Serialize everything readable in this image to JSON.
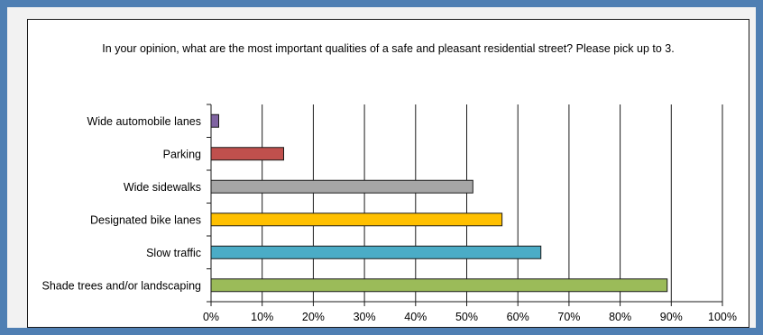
{
  "chart_data": {
    "type": "bar",
    "orientation": "horizontal",
    "title": "In your opinion, what are the most important qualities of a safe and pleasant residential street? Please pick up to 3.",
    "categories": [
      "Wide automobile lanes",
      "Parking",
      "Wide sidewalks",
      "Designated bike lanes",
      "Slow traffic",
      "Shade trees and/or landscaping"
    ],
    "values": [
      1.5,
      14.2,
      51.2,
      56.9,
      64.5,
      89.2
    ],
    "colors": [
      "#8064a2",
      "#c0504d",
      "#a6a6a6",
      "#ffc000",
      "#4bacc6",
      "#9bbb59"
    ],
    "xlim": [
      0,
      100
    ],
    "x_ticks": [
      "0%",
      "10%",
      "20%",
      "30%",
      "40%",
      "50%",
      "60%",
      "70%",
      "80%",
      "90%",
      "100%"
    ],
    "grid": "vertical",
    "legend": "none"
  }
}
